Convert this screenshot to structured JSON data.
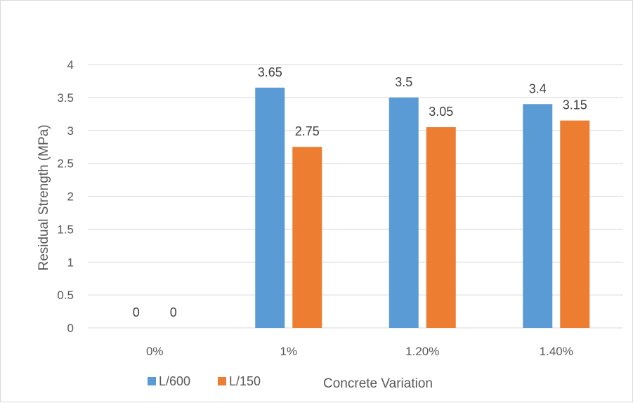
{
  "chart_data": {
    "type": "bar",
    "categories": [
      "0%",
      "1%",
      "1.20%",
      "1.40%"
    ],
    "series": [
      {
        "name": "L/600",
        "values": [
          0,
          3.65,
          3.5,
          3.4
        ],
        "color": "#5b9bd5"
      },
      {
        "name": "L/150",
        "values": [
          0,
          2.75,
          3.05,
          3.15
        ],
        "color": "#ed7d31"
      }
    ],
    "data_labels": [
      [
        "0",
        "3.65",
        "3.5",
        "3.4"
      ],
      [
        "0",
        "2.75",
        "3.05",
        "3.15"
      ]
    ],
    "title": "",
    "xlabel": "Concrete Variation",
    "ylabel": "Residual Strength (MPa)",
    "ylim": [
      0,
      4
    ],
    "y_ticks": [
      "0",
      "0.5",
      "1",
      "1.5",
      "2",
      "2.5",
      "3",
      "3.5",
      "4"
    ],
    "grid": true,
    "legend_position": "bottom-left",
    "gridline_color": "#d9d9d9"
  }
}
